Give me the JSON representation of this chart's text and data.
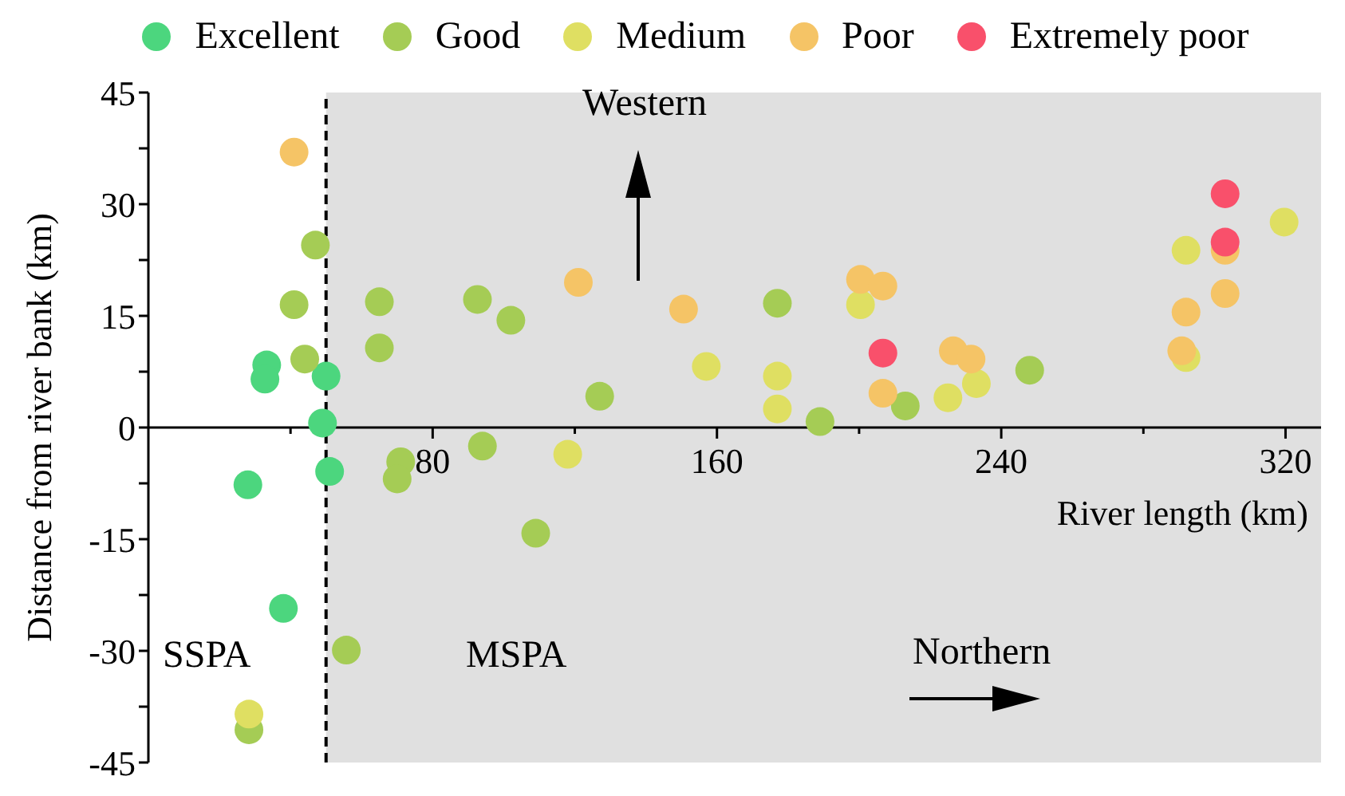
{
  "chart_data": {
    "type": "scatter",
    "xlabel": "River length (km)",
    "ylabel": "Distance from river bank (km)",
    "xlim": [
      0,
      330
    ],
    "xticks": [
      {
        "value": 40,
        "label": null
      },
      80,
      {
        "value": 120,
        "label": null
      },
      160,
      {
        "value": 200,
        "label": null
      },
      240,
      {
        "value": 280,
        "label": null
      },
      320
    ],
    "ylim": [
      -45,
      45
    ],
    "yticks": [
      -45,
      {
        "value": -37.5,
        "label": null
      },
      -30,
      {
        "value": -22.5,
        "label": null
      },
      -15,
      {
        "value": -7.5,
        "label": null
      },
      0,
      {
        "value": 7.5,
        "label": null
      },
      15,
      {
        "value": 22.5,
        "label": null
      },
      30,
      {
        "value": 37.5,
        "label": null
      },
      45
    ],
    "grid": false,
    "legend": "top",
    "marker": "circle",
    "bands": [
      {
        "axis": "x",
        "from": 50,
        "to": 330,
        "color": "#e0e0e0"
      }
    ],
    "ref_lines": [
      {
        "axis": "x",
        "value": 50,
        "line_style": "dashed",
        "color": "#000000"
      }
    ],
    "annotations": [
      "Western",
      "Northern",
      "SSPA",
      "MSPA"
    ],
    "series": [
      {
        "name": "Excellent",
        "color": "#4cd67e",
        "x": [
          33.3,
          32.8,
          50,
          49,
          51,
          28,
          38
        ],
        "values": [
          8.4,
          6.5,
          6.9,
          0.6,
          -5.9,
          -7.7,
          -24.3
        ]
      },
      {
        "name": "Good",
        "color": "#a5cc55",
        "x": [
          47,
          41,
          44,
          65,
          65,
          92.6,
          102,
          127,
          71,
          70,
          94,
          109,
          55.7,
          28.3,
          177,
          189,
          213,
          248
        ],
        "values": [
          24.5,
          16.5,
          9.2,
          16.9,
          10.7,
          17.2,
          14.4,
          4.2,
          -4.6,
          -6.9,
          -2.5,
          -14.2,
          -29.9,
          -40.6,
          16.7,
          0.8,
          2.9,
          7.7
        ]
      },
      {
        "name": "Medium",
        "color": "#dfdf62",
        "x": [
          118,
          157,
          28.3,
          177,
          177,
          200.4,
          225,
          233,
          292,
          292,
          319.6
        ],
        "values": [
          -3.6,
          8.2,
          -38.5,
          6.9,
          2.5,
          16.5,
          4,
          5.9,
          23.8,
          9.4,
          27.6
        ]
      },
      {
        "name": "Poor",
        "color": "#f5c466",
        "x": [
          41,
          121,
          150.6,
          200.4,
          206.7,
          206.7,
          226.5,
          231.5,
          292,
          290.8,
          303,
          303
        ],
        "values": [
          37,
          19.5,
          15.9,
          19.9,
          19,
          4.6,
          10.3,
          9.2,
          15.5,
          10.3,
          18,
          23.8
        ]
      },
      {
        "name": "Extremely poor",
        "color": "#f9506b",
        "x": [
          303,
          303,
          206.7
        ],
        "values": [
          31.4,
          24.9,
          10
        ]
      }
    ]
  }
}
